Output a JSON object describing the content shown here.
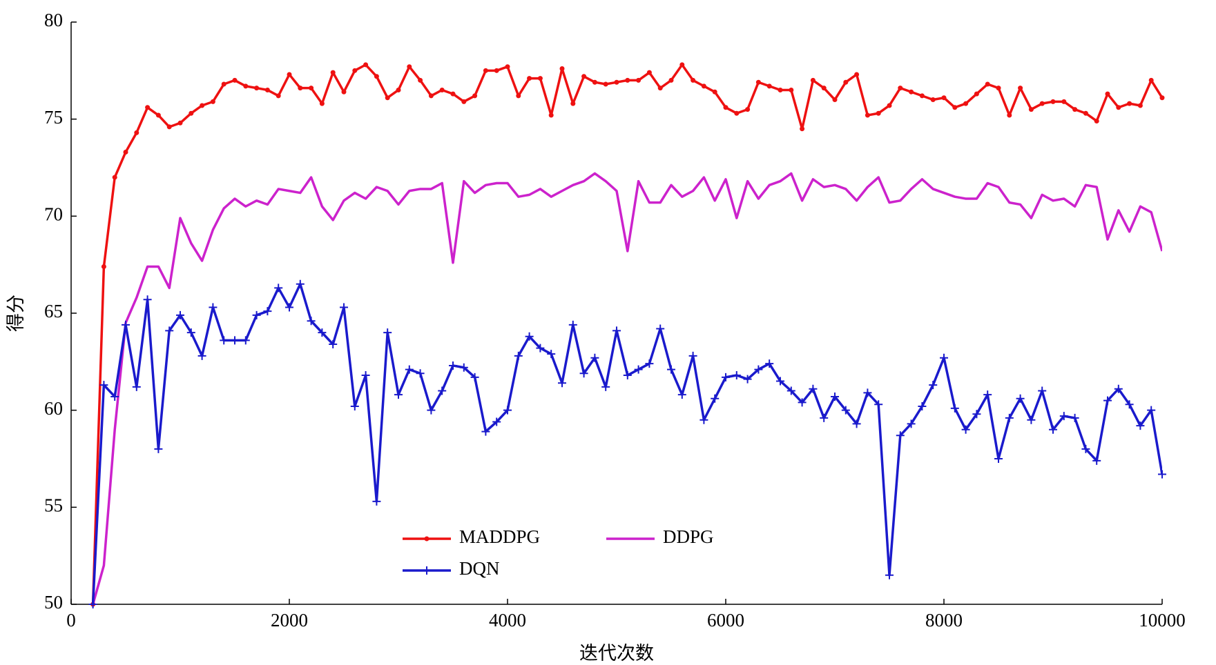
{
  "chart_data": {
    "type": "line",
    "x_label": "迭代次数",
    "y_label": "得分",
    "x": [
      200,
      300,
      400,
      500,
      600,
      700,
      800,
      900,
      1000,
      1100,
      1200,
      1300,
      1400,
      1500,
      1600,
      1700,
      1800,
      1900,
      2000,
      2100,
      2200,
      2300,
      2400,
      2500,
      2600,
      2700,
      2800,
      2900,
      3000,
      3100,
      3200,
      3300,
      3400,
      3500,
      3600,
      3700,
      3800,
      3900,
      4000,
      4100,
      4200,
      4300,
      4400,
      4500,
      4600,
      4700,
      4800,
      4900,
      5000,
      5100,
      5200,
      5300,
      5400,
      5500,
      5600,
      5700,
      5800,
      5900,
      6000,
      6100,
      6200,
      6300,
      6400,
      6500,
      6600,
      6700,
      6800,
      6900,
      7000,
      7100,
      7200,
      7300,
      7400,
      7500,
      7600,
      7700,
      7800,
      7900,
      8000,
      8100,
      8200,
      8300,
      8400,
      8500,
      8600,
      8700,
      8800,
      8900,
      9000,
      9100,
      9200,
      9300,
      9400,
      9500,
      9600,
      9700,
      9800,
      9900,
      10000
    ],
    "series": [
      {
        "name": "MADDPG",
        "color": "#ee1111",
        "marker": "o",
        "values": [
          50,
          67.4,
          72,
          73.3,
          74.3,
          75.6,
          75.2,
          74.6,
          74.8,
          75.3,
          75.7,
          75.9,
          76.8,
          77.0,
          76.7,
          76.6,
          76.5,
          76.2,
          77.3,
          76.6,
          76.6,
          75.8,
          77.4,
          76.4,
          77.5,
          77.8,
          77.2,
          76.1,
          76.5,
          77.7,
          77.0,
          76.2,
          76.5,
          76.3,
          75.9,
          76.2,
          77.5,
          77.5,
          77.7,
          76.2,
          77.1,
          77.1,
          75.2,
          77.6,
          75.8,
          77.2,
          76.9,
          76.8,
          76.9,
          77.0,
          77.0,
          77.4,
          76.6,
          77.0,
          77.8,
          77.0,
          76.7,
          76.4,
          75.6,
          75.3,
          75.5,
          76.9,
          76.7,
          76.5,
          76.5,
          74.5,
          77.0,
          76.6,
          76.0,
          76.9,
          77.3,
          75.2,
          75.3,
          75.7,
          76.6,
          76.4,
          76.2,
          76.0,
          76.1,
          75.6,
          75.8,
          76.3,
          76.8,
          76.6,
          75.2,
          76.6,
          75.5,
          75.8,
          75.9,
          75.9,
          75.5,
          75.3,
          74.9,
          76.3,
          75.6,
          75.8,
          75.7,
          77.0,
          76.1
        ]
      },
      {
        "name": "DDPG",
        "color": "#cc22cc",
        "marker": null,
        "values": [
          50,
          52,
          59,
          64.5,
          65.8,
          67.4,
          67.4,
          66.3,
          69.9,
          68.6,
          67.7,
          69.3,
          70.4,
          70.9,
          70.5,
          70.8,
          70.6,
          71.4,
          71.3,
          71.2,
          72.0,
          70.5,
          69.8,
          70.8,
          71.2,
          70.9,
          71.5,
          71.3,
          70.6,
          71.3,
          71.4,
          71.4,
          71.7,
          67.6,
          71.8,
          71.2,
          71.6,
          71.7,
          71.7,
          71.0,
          71.1,
          71.4,
          71.0,
          71.3,
          71.6,
          71.8,
          72.2,
          71.8,
          71.3,
          68.2,
          71.8,
          70.7,
          70.7,
          71.6,
          71.0,
          71.3,
          72.0,
          70.8,
          71.9,
          69.9,
          71.8,
          70.9,
          71.6,
          71.8,
          72.2,
          70.8,
          71.9,
          71.5,
          71.6,
          71.4,
          70.8,
          71.5,
          72.0,
          70.7,
          70.8,
          71.4,
          71.9,
          71.4,
          71.2,
          71.0,
          70.9,
          70.9,
          71.7,
          71.5,
          70.7,
          70.6,
          69.9,
          71.1,
          70.8,
          70.9,
          70.5,
          71.6,
          71.5,
          68.8,
          70.3,
          69.2,
          70.5,
          70.2,
          68.2
        ]
      },
      {
        "name": "DQN",
        "color": "#1a1acc",
        "marker": "+",
        "values": [
          50,
          61.3,
          60.7,
          64.4,
          61.2,
          65.7,
          58.0,
          64.1,
          64.9,
          64.0,
          62.8,
          65.3,
          63.6,
          63.6,
          63.6,
          64.9,
          65.1,
          66.3,
          65.3,
          66.5,
          64.6,
          64.0,
          63.4,
          65.3,
          60.2,
          61.8,
          55.3,
          64.0,
          60.8,
          62.1,
          61.9,
          60.0,
          61.0,
          62.3,
          62.2,
          61.7,
          58.9,
          59.4,
          60.0,
          62.8,
          63.8,
          63.2,
          62.9,
          61.4,
          64.4,
          61.9,
          62.7,
          61.2,
          64.1,
          61.8,
          62.1,
          62.4,
          64.2,
          62.1,
          60.8,
          62.8,
          59.5,
          60.6,
          61.7,
          61.8,
          61.6,
          62.1,
          62.4,
          61.5,
          61.0,
          60.4,
          61.1,
          59.6,
          60.7,
          60.0,
          59.3,
          60.9,
          60.3,
          51.5,
          58.7,
          59.3,
          60.2,
          61.3,
          62.7,
          60.1,
          59.0,
          59.8,
          60.8,
          57.5,
          59.6,
          60.6,
          59.5,
          61.0,
          59.0,
          59.7,
          59.6,
          58.0,
          57.4,
          60.5,
          61.1,
          60.3,
          59.2,
          60.0,
          56.7
        ]
      }
    ],
    "xlim": [
      0,
      10000
    ],
    "xticks": [
      0,
      2000,
      4000,
      6000,
      8000,
      10000
    ],
    "ylim": [
      50,
      80
    ],
    "yticks": [
      50,
      55,
      60,
      65,
      70,
      75,
      80
    ],
    "legend": "lower center"
  }
}
